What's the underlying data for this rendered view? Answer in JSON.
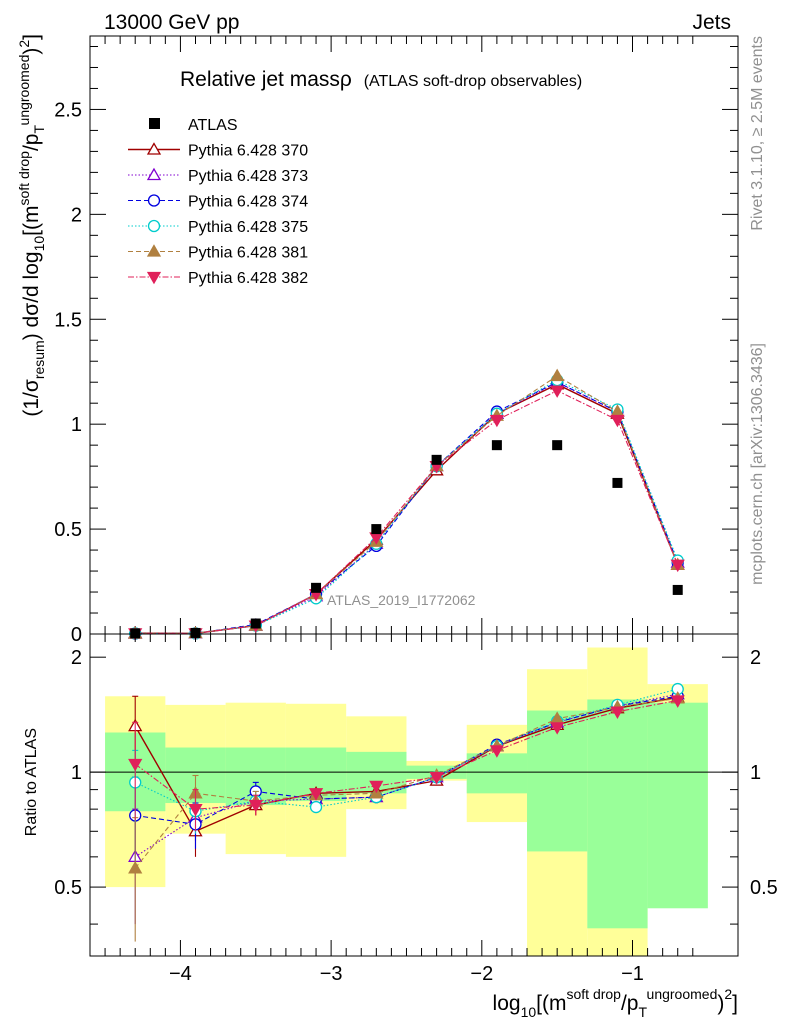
{
  "header": {
    "energy_label": "13000 GeV pp",
    "process_label": "Jets",
    "rivet_label": "Rivet 3.1.10, ≥ 2.5M events",
    "mcplots_label": "mcplots.cern.ch [arXiv:1306.3436]"
  },
  "chart_data": {
    "type": "scatter",
    "title": "Relative jet massρ",
    "subtitle": "(ATLAS soft-drop observables)",
    "analysis_label": "ATLAS_2019_I1772062",
    "xlabel_parts": {
      "pre": "log",
      "sub10": "10",
      "open": "[(m",
      "sup1": "soft drop",
      "mid": "/p",
      "subT": "T",
      "sup2": "ungroomed",
      "close": ")",
      "sq": "2",
      "end": "]"
    },
    "ylabel_parts": {
      "open": "(1/σ",
      "sub": "resum",
      "mid": ") dσ/d log",
      "sub10": "10",
      "rest": "[(m",
      "sup1": "soft drop",
      "slash": "/p",
      "subT": "T",
      "sup2": "ungroomed",
      "close": ")",
      "sq": "2",
      "end": "]"
    },
    "ratio_ylabel": "Ratio to ATLAS",
    "xlim": [
      -4.6,
      -0.3
    ],
    "ylim": [
      0,
      2.85
    ],
    "ratio_ylim": [
      0.33,
      2.3
    ],
    "x_ticks": [
      -4,
      -3,
      -2,
      -1
    ],
    "x_tick_labels": [
      "−4",
      "−3",
      "−2",
      "−1"
    ],
    "y_ticks": [
      0,
      0.5,
      1,
      1.5,
      2,
      2.5
    ],
    "y_tick_labels": [
      "0",
      "0.5",
      "1",
      "1.5",
      "2",
      "2.5"
    ],
    "ratio_y_ticks": [
      0.5,
      1,
      2
    ],
    "ratio_y_tick_labels": [
      "0.5",
      "1",
      "2"
    ],
    "log_ratio": true,
    "legend_position": "top-left",
    "x": [
      -4.3,
      -3.9,
      -3.5,
      -3.1,
      -2.7,
      -2.3,
      -1.9,
      -1.5,
      -1.1,
      -0.7
    ],
    "x_edges": [
      -4.5,
      -4.1,
      -3.7,
      -3.3,
      -2.9,
      -2.5,
      -2.1,
      -1.7,
      -1.3,
      -0.9,
      -0.5
    ],
    "atlas": {
      "name": "ATLAS",
      "values": [
        0.003,
        0.005,
        0.05,
        0.22,
        0.5,
        0.83,
        0.9,
        0.9,
        0.72,
        0.21
      ],
      "band_inner": [
        [
          0.79,
          1.27
        ],
        [
          0.83,
          1.16
        ],
        [
          0.82,
          1.16
        ],
        [
          0.84,
          1.16
        ],
        [
          0.88,
          1.13
        ],
        [
          0.96,
          1.04
        ],
        [
          0.88,
          1.12
        ],
        [
          0.62,
          1.45
        ],
        [
          0.39,
          1.55
        ],
        [
          0.44,
          1.52
        ]
      ],
      "band_outer": [
        [
          0.5,
          1.58
        ],
        [
          0.69,
          1.5
        ],
        [
          0.61,
          1.52
        ],
        [
          0.6,
          1.51
        ],
        [
          0.8,
          1.4
        ],
        [
          0.95,
          1.07
        ],
        [
          0.74,
          1.33
        ],
        [
          0.33,
          1.86
        ],
        [
          0.33,
          2.12
        ],
        [
          0.58,
          1.7
        ]
      ],
      "color": "#000000"
    },
    "series": [
      {
        "name": "Pythia 6.428 370",
        "color": "#a00000",
        "marker": "triangle-up-open",
        "dash": "",
        "width": 1.4,
        "values": [
          0.004,
          0.003,
          0.04,
          0.19,
          0.45,
          0.78,
          1.05,
          1.19,
          1.05,
          0.33
        ],
        "ratio": [
          1.32,
          0.7,
          0.82,
          0.88,
          0.89,
          0.95,
          1.17,
          1.33,
          1.47,
          1.57
        ],
        "err": [
          0.26,
          0.1,
          0.05,
          0.03,
          0.02,
          0.02,
          0.02,
          0.02,
          0.02,
          0.03
        ]
      },
      {
        "name": "Pythia 6.428 373",
        "color": "#8000d0",
        "marker": "triangle-up-open",
        "dash": "1.5,2",
        "width": 1.1,
        "values": [
          0.002,
          0.003,
          0.04,
          0.18,
          0.43,
          0.8,
          1.05,
          1.2,
          1.06,
          0.34
        ],
        "ratio": [
          0.6,
          0.76,
          0.84,
          0.85,
          0.86,
          0.97,
          1.17,
          1.35,
          1.49,
          1.6
        ],
        "err": [
          0.2,
          0.1,
          0.05,
          0.03,
          0.02,
          0.02,
          0.02,
          0.02,
          0.02,
          0.03
        ]
      },
      {
        "name": "Pythia 6.428 374",
        "color": "#0000e0",
        "marker": "circle-open",
        "dash": "5,3",
        "width": 1.1,
        "values": [
          0.002,
          0.003,
          0.045,
          0.19,
          0.42,
          0.8,
          1.06,
          1.2,
          1.06,
          0.34
        ],
        "ratio": [
          0.77,
          0.73,
          0.89,
          0.85,
          0.86,
          0.97,
          1.18,
          1.35,
          1.49,
          1.58
        ],
        "err": [
          0.2,
          0.1,
          0.05,
          0.03,
          0.02,
          0.02,
          0.02,
          0.02,
          0.02,
          0.03
        ]
      },
      {
        "name": "Pythia 6.428 375",
        "color": "#00cccc",
        "marker": "circle-open",
        "dash": "1.5,2",
        "width": 1.1,
        "values": [
          0.003,
          0.003,
          0.04,
          0.17,
          0.43,
          0.8,
          1.05,
          1.21,
          1.07,
          0.35
        ],
        "ratio": [
          0.94,
          0.79,
          0.84,
          0.81,
          0.86,
          0.97,
          1.17,
          1.36,
          1.5,
          1.65
        ],
        "err": [
          0.2,
          0.1,
          0.05,
          0.03,
          0.02,
          0.02,
          0.02,
          0.02,
          0.02,
          0.03
        ]
      },
      {
        "name": "Pythia 6.428 381",
        "color": "#b08040",
        "marker": "triangle-up-filled",
        "dash": "5,3",
        "width": 1.1,
        "values": [
          0.002,
          0.004,
          0.04,
          0.19,
          0.44,
          0.8,
          1.04,
          1.23,
          1.06,
          0.33
        ],
        "ratio": [
          0.56,
          0.88,
          0.84,
          0.87,
          0.88,
          0.98,
          1.17,
          1.38,
          1.48,
          1.56
        ],
        "err": [
          0.2,
          0.1,
          0.05,
          0.03,
          0.02,
          0.02,
          0.02,
          0.02,
          0.02,
          0.03
        ]
      },
      {
        "name": "Pythia 6.428 382",
        "color": "#e0205a",
        "marker": "triangle-down-filled",
        "dash": "6,2,1.5,2",
        "width": 1.1,
        "values": [
          0.003,
          0.003,
          0.04,
          0.19,
          0.46,
          0.8,
          1.02,
          1.16,
          1.02,
          0.33
        ],
        "ratio": [
          1.05,
          0.8,
          0.82,
          0.88,
          0.92,
          0.97,
          1.14,
          1.31,
          1.44,
          1.54
        ],
        "err": [
          0.3,
          0.1,
          0.05,
          0.03,
          0.02,
          0.02,
          0.02,
          0.02,
          0.02,
          0.03
        ]
      }
    ]
  }
}
